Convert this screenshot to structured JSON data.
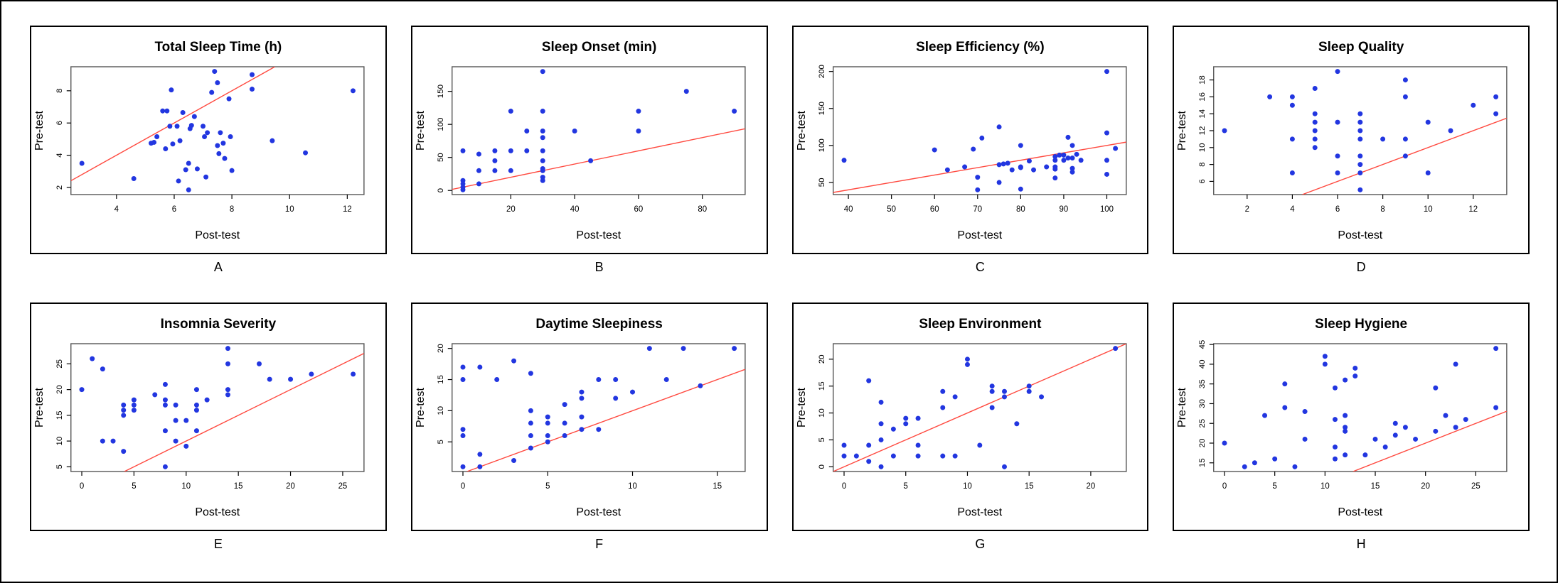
{
  "style": {
    "point_color": "#2236e0",
    "line_color": "#ff4a40",
    "box_color": "#555555",
    "text_color": "#000000",
    "background": "#ffffff",
    "panel_border": "#000000"
  },
  "chart_data": [
    {
      "panel": "A",
      "type": "scatter",
      "title": "Total Sleep Time (h)",
      "xlabel": "Post-test",
      "ylabel": "Pre-test",
      "xlim": [
        2.42,
        12.58
      ],
      "ylim": [
        1.56,
        9.49
      ],
      "xticks": [
        4,
        6,
        8,
        10,
        12
      ],
      "yticks": [
        2,
        4,
        6,
        8
      ],
      "grid": false,
      "legend": null,
      "reference_line": "identity",
      "points": [
        [
          2.8,
          3.5
        ],
        [
          4.6,
          2.55
        ],
        [
          5.2,
          4.75
        ],
        [
          5.3,
          4.8
        ],
        [
          5.4,
          5.15
        ],
        [
          5.6,
          6.75
        ],
        [
          5.7,
          4.4
        ],
        [
          5.75,
          6.75
        ],
        [
          5.85,
          5.8
        ],
        [
          5.9,
          8.05
        ],
        [
          5.95,
          4.7
        ],
        [
          6.1,
          5.8
        ],
        [
          6.15,
          2.4
        ],
        [
          6.2,
          4.9
        ],
        [
          6.3,
          6.65
        ],
        [
          6.4,
          3.1
        ],
        [
          6.5,
          1.85
        ],
        [
          6.5,
          3.5
        ],
        [
          6.55,
          5.65
        ],
        [
          6.6,
          5.85
        ],
        [
          6.7,
          6.4
        ],
        [
          6.8,
          3.15
        ],
        [
          7.0,
          5.8
        ],
        [
          7.05,
          5.15
        ],
        [
          7.1,
          2.65
        ],
        [
          7.15,
          5.4
        ],
        [
          7.3,
          7.9
        ],
        [
          7.4,
          9.2
        ],
        [
          7.5,
          8.5
        ],
        [
          7.5,
          4.6
        ],
        [
          7.55,
          4.1
        ],
        [
          7.6,
          5.4
        ],
        [
          7.7,
          4.75
        ],
        [
          7.75,
          3.8
        ],
        [
          7.9,
          7.5
        ],
        [
          7.95,
          5.15
        ],
        [
          8.0,
          3.05
        ],
        [
          8.7,
          9.0
        ],
        [
          8.7,
          8.1
        ],
        [
          9.4,
          4.9
        ],
        [
          10.55,
          4.15
        ],
        [
          12.2,
          8.0
        ]
      ]
    },
    {
      "panel": "B",
      "type": "scatter",
      "title": "Sleep Onset (min)",
      "xlabel": "Post-test",
      "ylabel": "Pre-test",
      "xlim": [
        1.6,
        93.4
      ],
      "ylim": [
        -6.2,
        187.2
      ],
      "xticks": [
        20,
        40,
        60,
        80
      ],
      "yticks": [
        0,
        50,
        100,
        150
      ],
      "grid": false,
      "legend": null,
      "reference_line": "identity",
      "points": [
        [
          5,
          60
        ],
        [
          5,
          15
        ],
        [
          5,
          10
        ],
        [
          5,
          5
        ],
        [
          5,
          1
        ],
        [
          10,
          55
        ],
        [
          10,
          30
        ],
        [
          10,
          10
        ],
        [
          15,
          60
        ],
        [
          15,
          45
        ],
        [
          15,
          30
        ],
        [
          20,
          120
        ],
        [
          20,
          60
        ],
        [
          20,
          30
        ],
        [
          25,
          90
        ],
        [
          25,
          60
        ],
        [
          30,
          180
        ],
        [
          30,
          120
        ],
        [
          30,
          90
        ],
        [
          30,
          80
        ],
        [
          30,
          60
        ],
        [
          30,
          45
        ],
        [
          30,
          33
        ],
        [
          30,
          30
        ],
        [
          30,
          20
        ],
        [
          30,
          15
        ],
        [
          40,
          90
        ],
        [
          45,
          45
        ],
        [
          60,
          120
        ],
        [
          60,
          90
        ],
        [
          75,
          150
        ],
        [
          90,
          120
        ]
      ]
    },
    {
      "panel": "C",
      "type": "scatter",
      "title": "Sleep Efficiency (%)",
      "xlabel": "Post-test",
      "ylabel": "Pre-test",
      "xlim": [
        36.48,
        104.52
      ],
      "ylim": [
        33.6,
        206.4
      ],
      "xticks": [
        40,
        50,
        60,
        70,
        80,
        90,
        100
      ],
      "yticks": [
        50,
        100,
        150,
        200
      ],
      "grid": false,
      "legend": null,
      "reference_line": "identity",
      "points": [
        [
          39,
          80
        ],
        [
          60,
          94
        ],
        [
          63,
          67
        ],
        [
          67,
          71
        ],
        [
          69,
          95
        ],
        [
          70,
          57
        ],
        [
          70,
          40
        ],
        [
          71,
          110
        ],
        [
          75,
          125
        ],
        [
          75,
          74
        ],
        [
          75,
          50
        ],
        [
          76,
          75
        ],
        [
          77,
          76
        ],
        [
          78,
          67
        ],
        [
          80,
          100
        ],
        [
          80,
          71
        ],
        [
          80,
          70
        ],
        [
          80,
          41
        ],
        [
          82,
          79
        ],
        [
          83,
          67
        ],
        [
          86,
          71
        ],
        [
          88,
          85
        ],
        [
          88,
          80
        ],
        [
          88,
          71
        ],
        [
          88,
          68
        ],
        [
          88,
          56
        ],
        [
          89,
          87
        ],
        [
          90,
          87
        ],
        [
          90,
          80
        ],
        [
          91,
          111
        ],
        [
          91,
          83
        ],
        [
          92,
          100
        ],
        [
          92,
          83
        ],
        [
          92,
          69
        ],
        [
          92,
          64
        ],
        [
          93,
          88
        ],
        [
          94,
          80
        ],
        [
          100,
          200
        ],
        [
          100,
          117
        ],
        [
          100,
          80
        ],
        [
          100,
          61
        ],
        [
          102,
          96
        ]
      ]
    },
    {
      "panel": "D",
      "type": "scatter",
      "title": "Sleep Quality",
      "xlabel": "Post-test",
      "ylabel": "Pre-test",
      "xlim": [
        0.52,
        13.48
      ],
      "ylim": [
        4.44,
        19.56
      ],
      "xticks": [
        2,
        4,
        6,
        8,
        10,
        12
      ],
      "yticks": [
        6,
        8,
        10,
        12,
        14,
        16,
        18
      ],
      "grid": false,
      "legend": null,
      "reference_line": "identity",
      "points": [
        [
          1,
          12
        ],
        [
          3,
          16
        ],
        [
          4,
          16
        ],
        [
          4,
          15
        ],
        [
          4,
          11
        ],
        [
          4,
          7
        ],
        [
          5,
          17
        ],
        [
          5,
          14
        ],
        [
          5,
          13
        ],
        [
          5,
          12
        ],
        [
          5,
          11
        ],
        [
          5,
          10
        ],
        [
          6,
          19
        ],
        [
          6,
          13
        ],
        [
          6,
          9
        ],
        [
          6,
          7
        ],
        [
          7,
          14
        ],
        [
          7,
          13
        ],
        [
          7,
          12
        ],
        [
          7,
          11
        ],
        [
          7,
          9
        ],
        [
          7,
          8
        ],
        [
          7,
          7
        ],
        [
          7,
          5
        ],
        [
          8,
          11
        ],
        [
          9,
          18
        ],
        [
          9,
          16
        ],
        [
          9,
          11
        ],
        [
          9,
          9
        ],
        [
          10,
          13
        ],
        [
          10,
          7
        ],
        [
          11,
          12
        ],
        [
          12,
          15
        ],
        [
          13,
          16
        ],
        [
          13,
          14
        ]
      ]
    },
    {
      "panel": "E",
      "type": "scatter",
      "title": "Insomnia Severity",
      "xlabel": "Post-test",
      "ylabel": "Pre-test",
      "xlim": [
        -1.04,
        27.04
      ],
      "ylim": [
        4.08,
        28.92
      ],
      "xticks": [
        0,
        5,
        10,
        15,
        20,
        25
      ],
      "yticks": [
        5,
        10,
        15,
        20,
        25
      ],
      "grid": false,
      "legend": null,
      "reference_line": "identity",
      "points": [
        [
          0,
          20
        ],
        [
          1,
          26
        ],
        [
          2,
          24
        ],
        [
          2,
          10
        ],
        [
          3,
          10
        ],
        [
          4,
          17
        ],
        [
          4,
          16
        ],
        [
          4,
          15
        ],
        [
          4,
          8
        ],
        [
          5,
          18
        ],
        [
          5,
          17
        ],
        [
          5,
          16
        ],
        [
          7,
          19
        ],
        [
          8,
          21
        ],
        [
          8,
          18
        ],
        [
          8,
          17
        ],
        [
          8,
          12
        ],
        [
          8,
          5
        ],
        [
          9,
          17
        ],
        [
          9,
          14
        ],
        [
          9,
          10
        ],
        [
          10,
          14
        ],
        [
          10,
          9
        ],
        [
          11,
          20
        ],
        [
          11,
          17
        ],
        [
          11,
          16
        ],
        [
          11,
          12
        ],
        [
          12,
          18
        ],
        [
          14,
          28
        ],
        [
          14,
          25
        ],
        [
          14,
          20
        ],
        [
          14,
          19
        ],
        [
          17,
          25
        ],
        [
          18,
          22
        ],
        [
          20,
          22
        ],
        [
          22,
          23
        ],
        [
          26,
          23
        ]
      ]
    },
    {
      "panel": "F",
      "type": "scatter",
      "title": "Daytime Sleepiness",
      "xlabel": "Post-test",
      "ylabel": "Pre-test",
      "xlim": [
        -0.64,
        16.64
      ],
      "ylim": [
        0.24,
        20.76
      ],
      "xticks": [
        0,
        5,
        10,
        15
      ],
      "yticks": [
        5,
        10,
        15,
        20
      ],
      "grid": false,
      "legend": null,
      "reference_line": "identity",
      "points": [
        [
          0,
          17
        ],
        [
          0,
          15
        ],
        [
          0,
          7
        ],
        [
          0,
          6
        ],
        [
          0,
          1
        ],
        [
          1,
          17
        ],
        [
          1,
          3
        ],
        [
          1,
          1
        ],
        [
          2,
          15
        ],
        [
          3,
          18
        ],
        [
          3,
          2
        ],
        [
          4,
          16
        ],
        [
          4,
          10
        ],
        [
          4,
          8
        ],
        [
          4,
          6
        ],
        [
          4,
          4
        ],
        [
          5,
          9
        ],
        [
          5,
          8
        ],
        [
          5,
          6
        ],
        [
          5,
          5
        ],
        [
          6,
          11
        ],
        [
          6,
          8
        ],
        [
          6,
          6
        ],
        [
          7,
          13
        ],
        [
          7,
          12
        ],
        [
          7,
          9
        ],
        [
          7,
          7
        ],
        [
          8,
          15
        ],
        [
          8,
          7
        ],
        [
          9,
          15
        ],
        [
          9,
          12
        ],
        [
          10,
          13
        ],
        [
          11,
          20
        ],
        [
          12,
          15
        ],
        [
          13,
          20
        ],
        [
          14,
          14
        ],
        [
          16,
          20
        ]
      ]
    },
    {
      "panel": "G",
      "type": "scatter",
      "title": "Sleep Environment",
      "xlabel": "Post-test",
      "ylabel": "Pre-test",
      "xlim": [
        -0.88,
        22.88
      ],
      "ylim": [
        -0.88,
        22.88
      ],
      "xticks": [
        0,
        5,
        10,
        15,
        20
      ],
      "yticks": [
        0,
        5,
        10,
        15,
        20
      ],
      "grid": false,
      "legend": null,
      "reference_line": "identity",
      "points": [
        [
          0,
          4
        ],
        [
          0,
          2
        ],
        [
          1,
          2
        ],
        [
          2,
          16
        ],
        [
          2,
          4
        ],
        [
          2,
          1
        ],
        [
          3,
          12
        ],
        [
          3,
          8
        ],
        [
          3,
          5
        ],
        [
          3,
          0
        ],
        [
          4,
          7
        ],
        [
          4,
          2
        ],
        [
          5,
          9
        ],
        [
          5,
          8
        ],
        [
          6,
          9
        ],
        [
          6,
          4
        ],
        [
          6,
          2
        ],
        [
          8,
          14
        ],
        [
          8,
          11
        ],
        [
          8,
          2
        ],
        [
          9,
          13
        ],
        [
          9,
          2
        ],
        [
          10,
          20
        ],
        [
          10,
          19
        ],
        [
          11,
          4
        ],
        [
          12,
          15
        ],
        [
          12,
          14
        ],
        [
          12,
          11
        ],
        [
          13,
          14
        ],
        [
          13,
          13
        ],
        [
          13,
          0
        ],
        [
          14,
          8
        ],
        [
          15,
          15
        ],
        [
          15,
          14
        ],
        [
          16,
          13
        ],
        [
          22,
          22
        ]
      ]
    },
    {
      "panel": "H",
      "type": "scatter",
      "title": "Sleep Hygiene",
      "xlabel": "Post-test",
      "ylabel": "Pre-test",
      "xlim": [
        -1.08,
        28.08
      ],
      "ylim": [
        12.8,
        45.2
      ],
      "xticks": [
        0,
        5,
        10,
        15,
        20,
        25
      ],
      "yticks": [
        15,
        20,
        25,
        30,
        35,
        40,
        45
      ],
      "grid": false,
      "legend": null,
      "reference_line": "identity",
      "points": [
        [
          0,
          20
        ],
        [
          2,
          14
        ],
        [
          3,
          15
        ],
        [
          4,
          27
        ],
        [
          5,
          16
        ],
        [
          6,
          35
        ],
        [
          6,
          29
        ],
        [
          7,
          14
        ],
        [
          8,
          28
        ],
        [
          8,
          21
        ],
        [
          10,
          42
        ],
        [
          10,
          40
        ],
        [
          11,
          34
        ],
        [
          11,
          26
        ],
        [
          11,
          19
        ],
        [
          11,
          16
        ],
        [
          12,
          36
        ],
        [
          12,
          27
        ],
        [
          12,
          24
        ],
        [
          12,
          23
        ],
        [
          12,
          17
        ],
        [
          13,
          39
        ],
        [
          13,
          37
        ],
        [
          14,
          17
        ],
        [
          15,
          21
        ],
        [
          16,
          19
        ],
        [
          17,
          25
        ],
        [
          17,
          22
        ],
        [
          18,
          24
        ],
        [
          19,
          21
        ],
        [
          21,
          34
        ],
        [
          21,
          23
        ],
        [
          22,
          27
        ],
        [
          23,
          40
        ],
        [
          23,
          24
        ],
        [
          24,
          26
        ],
        [
          27,
          44
        ],
        [
          27,
          29
        ]
      ]
    }
  ]
}
